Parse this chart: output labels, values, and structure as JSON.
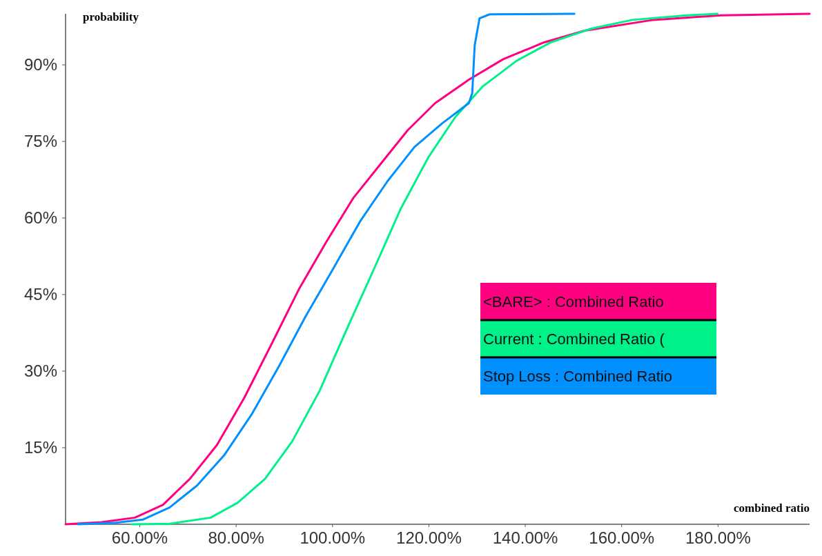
{
  "chart_data": {
    "type": "line",
    "xlabel": "combined ratio",
    "ylabel": "probability",
    "xlim": [
      44.6,
      199
    ],
    "ylim": [
      0,
      100
    ],
    "xticks": [
      {
        "value": 60,
        "label": "60.00%"
      },
      {
        "value": 80,
        "label": "80.00%"
      },
      {
        "value": 100,
        "label": "100.00%"
      },
      {
        "value": 120,
        "label": "120.00%"
      },
      {
        "value": 140,
        "label": "140.00%"
      },
      {
        "value": 160,
        "label": "160.00%"
      },
      {
        "value": 180,
        "label": "180.00%"
      }
    ],
    "yticks": [
      {
        "value": 15,
        "label": "15%"
      },
      {
        "value": 30,
        "label": "30%"
      },
      {
        "value": 45,
        "label": "45%"
      },
      {
        "value": 60,
        "label": "60%"
      },
      {
        "value": 75,
        "label": "75%"
      },
      {
        "value": 90,
        "label": "90%"
      }
    ],
    "grid": false,
    "legend": "right",
    "marker": "none",
    "line_style": "solid",
    "series": [
      {
        "name": "<BARE> : Combined Ratio",
        "color": "#ff0080",
        "x": [
          44.6,
          52,
          59,
          64.8,
          70.4,
          76,
          81.7,
          87.4,
          93,
          98.7,
          104.3,
          110,
          115.6,
          121.3,
          128.3,
          135.4,
          143.9,
          152.3,
          166.5,
          180.6,
          199
        ],
        "values": [
          0,
          0.4,
          1.3,
          3.8,
          8.9,
          15.5,
          24.8,
          35.4,
          46,
          55.3,
          63.9,
          70.6,
          77.2,
          82.5,
          87.1,
          91.1,
          94.4,
          96.7,
          98.8,
          99.7,
          100
        ]
      },
      {
        "name": "Current : Combined Ratio (",
        "color": "#00f08a",
        "x": [
          58.4,
          66.2,
          74.7,
          80.3,
          86,
          91.6,
          97.3,
          102.9,
          108.6,
          114.2,
          119.9,
          125.5,
          131.2,
          138.2,
          145.3,
          153.7,
          162.2,
          173.5,
          179.9
        ],
        "values": [
          0,
          0.1,
          1.3,
          4.2,
          8.9,
          16.2,
          26.1,
          38.1,
          50,
          61.9,
          71.9,
          79.8,
          85.8,
          90.8,
          94.4,
          97.1,
          98.8,
          99.7,
          100
        ]
      },
      {
        "name": "Stop Loss : Combined Ratio",
        "color": "#0090ff",
        "x": [
          47.2,
          55,
          60.6,
          66.2,
          71.9,
          77.5,
          83.2,
          88.8,
          94.4,
          100.1,
          105.7,
          111.4,
          117,
          122.7,
          128.3,
          129,
          129.5,
          130.5,
          132.6,
          150.2
        ],
        "values": [
          0,
          0.3,
          0.9,
          3.3,
          7.6,
          13.5,
          21.5,
          30.8,
          40.7,
          50,
          59.3,
          67.2,
          73.9,
          78.5,
          82.5,
          84.5,
          93.8,
          99.1,
          99.9,
          100
        ]
      }
    ]
  }
}
